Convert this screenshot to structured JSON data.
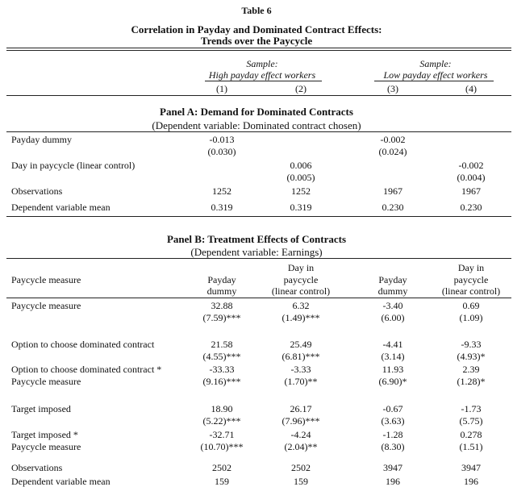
{
  "table": {
    "number": "Table 6",
    "title1": "Correlation in Payday and Dominated Contract Effects:",
    "title2": "Trends over the Paycycle"
  },
  "header": {
    "sample_left_l1": "Sample:",
    "sample_left_l2": "High payday effect workers",
    "sample_right_l1": "Sample:",
    "sample_right_l2": "Low payday effect workers",
    "cols": [
      "(1)",
      "(2)",
      "(3)",
      "(4)"
    ]
  },
  "panelA": {
    "title": "Panel A: Demand for Dominated Contracts",
    "subtitle": "(Dependent variable: Dominated contract chosen)",
    "rows": [
      {
        "label": "Payday dummy",
        "c1": "-0.013",
        "c1se": "(0.030)",
        "c3": "-0.002",
        "c3se": "(0.024)"
      },
      {
        "label": "Day in paycycle (linear control)",
        "c2": "0.006",
        "c2se": "(0.005)",
        "c4": "-0.002",
        "c4se": "(0.004)"
      },
      {
        "label": "Observations",
        "c1": "1252",
        "c2": "1252",
        "c3": "1967",
        "c4": "1967"
      },
      {
        "label": "Dependent variable mean",
        "c1": "0.319",
        "c2": "0.319",
        "c3": "0.230",
        "c4": "0.230"
      }
    ]
  },
  "panelB": {
    "title": "Panel B: Treatment Effects of Contracts",
    "subtitle": "(Dependent variable: Earnings)",
    "measure_label": "Paycycle measure",
    "col_head_payday_l1": "Payday",
    "col_head_payday_l2": "dummy",
    "col_head_day_l1": "Day in",
    "col_head_day_l2": "paycycle",
    "col_head_day_l3": "(linear control)",
    "r1_label": "Paycycle measure",
    "r1": [
      "32.88",
      "6.32",
      "-3.40",
      "0.69"
    ],
    "r1se": [
      "(7.59)***",
      "(1.49)***",
      "(6.00)",
      "(1.09)"
    ],
    "r2_label": "Option to choose dominated contract",
    "r2": [
      "21.58",
      "25.49",
      "-4.41",
      "-9.33"
    ],
    "r2se": [
      "(4.55)***",
      "(6.81)***",
      "(3.14)",
      "(4.93)*"
    ],
    "r3_label_l1": "Option to choose dominated contract *",
    "r3_label_l2": "Paycycle measure",
    "r3": [
      "-33.33",
      "-3.33",
      "11.93",
      "2.39"
    ],
    "r3se": [
      "(9.16)***",
      "(1.70)**",
      "(6.90)*",
      "(1.28)*"
    ],
    "r4_label": "Target imposed",
    "r4": [
      "18.90",
      "26.17",
      "-0.67",
      "-1.73"
    ],
    "r4se": [
      "(5.22)***",
      "(7.96)***",
      "(3.63)",
      "(5.75)"
    ],
    "r5_label_l1": "Target imposed *",
    "r5_label_l2": "Paycycle measure",
    "r5": [
      "-32.71",
      "-4.24",
      "-1.28",
      "0.278"
    ],
    "r5se": [
      "(10.70)***",
      "(2.04)**",
      "(8.30)",
      "(1.51)"
    ],
    "obs_label": "Observations",
    "obs": [
      "2502",
      "2502",
      "3947",
      "3947"
    ],
    "mean_label": "Dependent variable mean",
    "mean": [
      "159",
      "159",
      "196",
      "196"
    ]
  }
}
